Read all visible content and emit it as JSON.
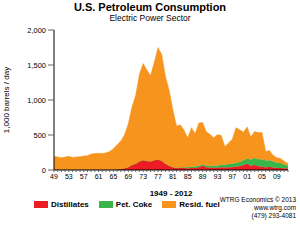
{
  "chart_data": {
    "type": "area",
    "title": "U.S. Petroleum Consumption",
    "subtitle": "Electric Power Sector",
    "y_label": "1,000 barrels / day",
    "x_label": "1949 - 2012",
    "annotations": [
      "WTRG Economics © 2013",
      "www.wtrg.com",
      "(479) 293-4081"
    ],
    "categories": [
      "49",
      null,
      null,
      null,
      "53",
      null,
      null,
      null,
      "57",
      null,
      null,
      null,
      "61",
      null,
      null,
      null,
      "65",
      null,
      null,
      null,
      "69",
      null,
      null,
      null,
      "73",
      null,
      null,
      null,
      "77",
      null,
      null,
      null,
      "81",
      null,
      null,
      null,
      "85",
      null,
      null,
      null,
      "89",
      null,
      null,
      null,
      "93",
      null,
      null,
      null,
      "97",
      null,
      null,
      null,
      "01",
      null,
      null,
      null,
      "05",
      null,
      null,
      null,
      "09",
      null,
      null,
      null
    ],
    "series": [
      {
        "name": "Distillates",
        "color": "#ed1c24",
        "values": [
          5,
          5,
          5,
          5,
          5,
          5,
          5,
          5,
          5,
          5,
          5,
          5,
          5,
          5,
          5,
          5,
          5,
          10,
          15,
          25,
          40,
          70,
          90,
          120,
          140,
          130,
          120,
          140,
          150,
          130,
          90,
          60,
          40,
          30,
          30,
          30,
          25,
          30,
          30,
          40,
          60,
          40,
          35,
          30,
          35,
          40,
          35,
          40,
          40,
          50,
          55,
          70,
          90,
          60,
          70,
          55,
          50,
          35,
          45,
          35,
          30,
          30,
          25,
          20
        ]
      },
      {
        "name": "Pet. Coke",
        "color": "#39b54a",
        "values": [
          0,
          0,
          0,
          0,
          0,
          0,
          0,
          0,
          0,
          0,
          0,
          0,
          0,
          0,
          0,
          0,
          0,
          0,
          0,
          0,
          0,
          0,
          0,
          0,
          0,
          0,
          0,
          0,
          0,
          0,
          0,
          0,
          0,
          0,
          5,
          10,
          15,
          15,
          20,
          20,
          20,
          25,
          25,
          30,
          30,
          35,
          40,
          45,
          50,
          55,
          60,
          70,
          75,
          90,
          100,
          100,
          105,
          100,
          95,
          85,
          75,
          70,
          55,
          40
        ]
      },
      {
        "name": "Resid. fuel",
        "color": "#f7941d",
        "values": [
          190,
          180,
          170,
          180,
          190,
          175,
          180,
          185,
          195,
          200,
          225,
          230,
          235,
          230,
          240,
          260,
          300,
          350,
          400,
          480,
          620,
          830,
          980,
          1250,
          1380,
          1300,
          1230,
          1400,
          1600,
          1520,
          1250,
          1080,
          820,
          600,
          610,
          530,
          420,
          560,
          470,
          610,
          600,
          480,
          450,
          400,
          440,
          420,
          260,
          300,
          350,
          500,
          460,
          400,
          450,
          320,
          380,
          380,
          380,
          130,
          140,
          90,
          70,
          65,
          45,
          30
        ]
      }
    ],
    "ylim": [
      0,
      2000
    ],
    "yticks": [
      0,
      500,
      {
        "value": 1000,
        "label": "1,000"
      },
      {
        "value": 1500,
        "label": "1,500"
      },
      {
        "value": 2000,
        "label": "2,000"
      }
    ],
    "stacked": true,
    "grid": false,
    "legend": "bottom"
  }
}
